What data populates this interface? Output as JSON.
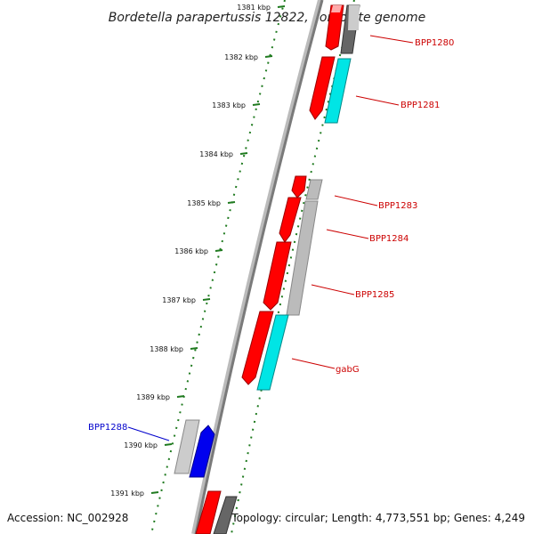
{
  "title": "Bordetella parapertussis 12822, complete genome",
  "footer": {
    "accession": "Accession: NC_002928",
    "topology": "Topology: circular; Length: 4,773,551 bp; Genes: 4,249"
  },
  "colors": {
    "backbone": "#7a7a7a",
    "tick": "#1f7a1f",
    "forward_label": "#cc0000",
    "reverse_label": "#0000cc",
    "cds": "#ff0000",
    "cds_light": "#ffaaaa",
    "cyan": "#00e5e5",
    "gray": "#bbbbbb",
    "dark_gray": "#666666",
    "blue": "#0000ee"
  },
  "ticks": [
    "1381 kbp",
    "1382 kbp",
    "1383 kbp",
    "1384 kbp",
    "1385 kbp",
    "1386 kbp",
    "1387 kbp",
    "1388 kbp",
    "1389 kbp",
    "1390 kbp",
    "1391 kbp"
  ],
  "genes": [
    {
      "label": "BPP1280",
      "strand": "forward"
    },
    {
      "label": "BPP1281",
      "strand": "forward"
    },
    {
      "label": "BPP1283",
      "strand": "forward"
    },
    {
      "label": "BPP1284",
      "strand": "forward"
    },
    {
      "label": "BPP1285",
      "strand": "forward"
    },
    {
      "label": "gabG",
      "strand": "forward"
    },
    {
      "label": "BPP1288",
      "strand": "reverse"
    }
  ]
}
